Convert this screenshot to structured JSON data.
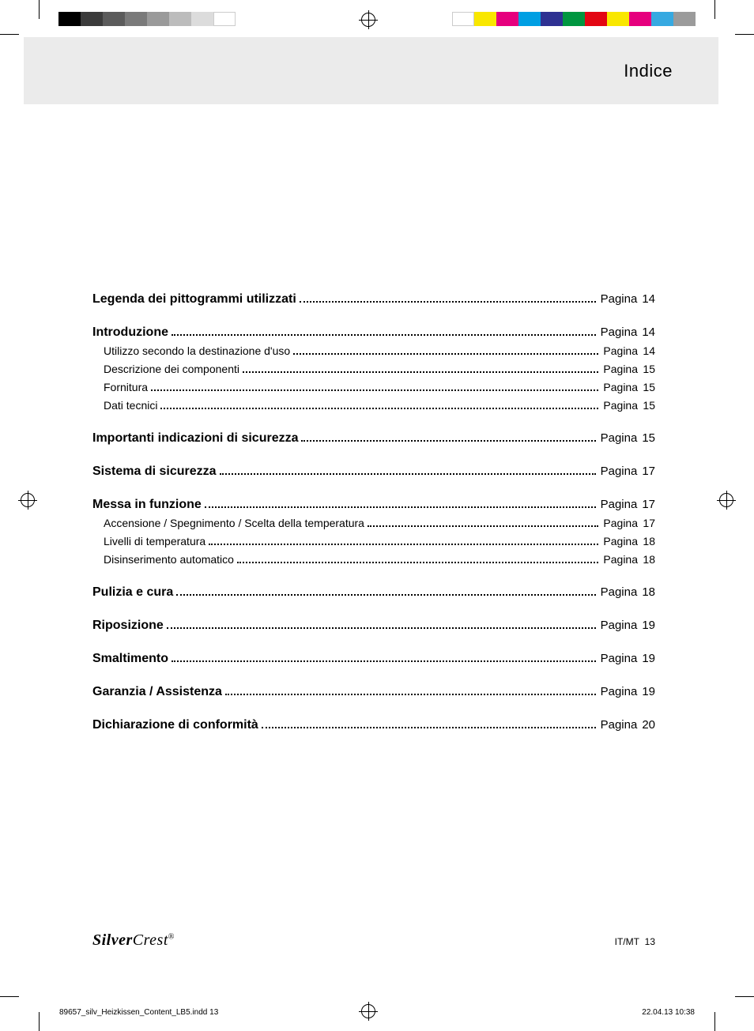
{
  "printer_marks": {
    "left_strip_colors": [
      "#000000",
      "#3b3b3b",
      "#5b5b5b",
      "#7a7a7a",
      "#9a9a9a",
      "#bcbcbc",
      "#dcdcdc",
      "#ffffff"
    ],
    "right_strip_colors": [
      "#ffffff",
      "#f9e700",
      "#e6007e",
      "#009fe3",
      "#2e3192",
      "#009640",
      "#e30613",
      "#f9e700",
      "#e6007e",
      "#36a9e1",
      "#9b9b9b"
    ],
    "crop_color": "#000000"
  },
  "header": {
    "title": "Indice",
    "background_color": "#ebebeb"
  },
  "toc": {
    "page_word": "Pagina",
    "groups": [
      {
        "items": [
          {
            "label": "Legenda dei pittogrammi utilizzati",
            "page": "14",
            "bold": true
          }
        ]
      },
      {
        "items": [
          {
            "label": "Introduzione",
            "page": "14",
            "bold": true
          },
          {
            "label": "Utilizzo secondo la destinazione d'uso",
            "page": "14"
          },
          {
            "label": "Descrizione dei componenti",
            "page": "15"
          },
          {
            "label": "Fornitura",
            "page": "15"
          },
          {
            "label": "Dati tecnici",
            "page": "15"
          }
        ]
      },
      {
        "items": [
          {
            "label": "Importanti indicazioni di sicurezza",
            "page": "15",
            "bold": true
          }
        ]
      },
      {
        "items": [
          {
            "label": "Sistema di sicurezza",
            "page": "17",
            "bold": true
          }
        ]
      },
      {
        "items": [
          {
            "label": "Messa in funzione",
            "page": "17",
            "bold": true
          },
          {
            "label": "Accensione / Spegnimento / Scelta della temperatura",
            "page": "17"
          },
          {
            "label": "Livelli di temperatura",
            "page": "18"
          },
          {
            "label": "Disinserimento automatico",
            "page": "18"
          }
        ]
      },
      {
        "items": [
          {
            "label": "Pulizia e cura",
            "page": "18",
            "bold": true
          }
        ]
      },
      {
        "items": [
          {
            "label": "Riposizione",
            "page": "19",
            "bold": true
          }
        ]
      },
      {
        "items": [
          {
            "label": "Smaltimento",
            "page": "19",
            "bold": true
          }
        ]
      },
      {
        "items": [
          {
            "label": "Garanzia / Assistenza",
            "page": "19",
            "bold": true
          }
        ]
      },
      {
        "items": [
          {
            "label": "Dichiarazione di conformità",
            "page": "20",
            "bold": true
          }
        ]
      }
    ]
  },
  "footer": {
    "brand_a": "Silver",
    "brand_b": "Crest",
    "brand_mark": "®",
    "folio_lang": "IT/MT",
    "folio_num": "13"
  },
  "imposition": {
    "file": "89657_silv_Heizkissen_Content_LB5.indd   13",
    "datetime": "22.04.13   10:38"
  }
}
